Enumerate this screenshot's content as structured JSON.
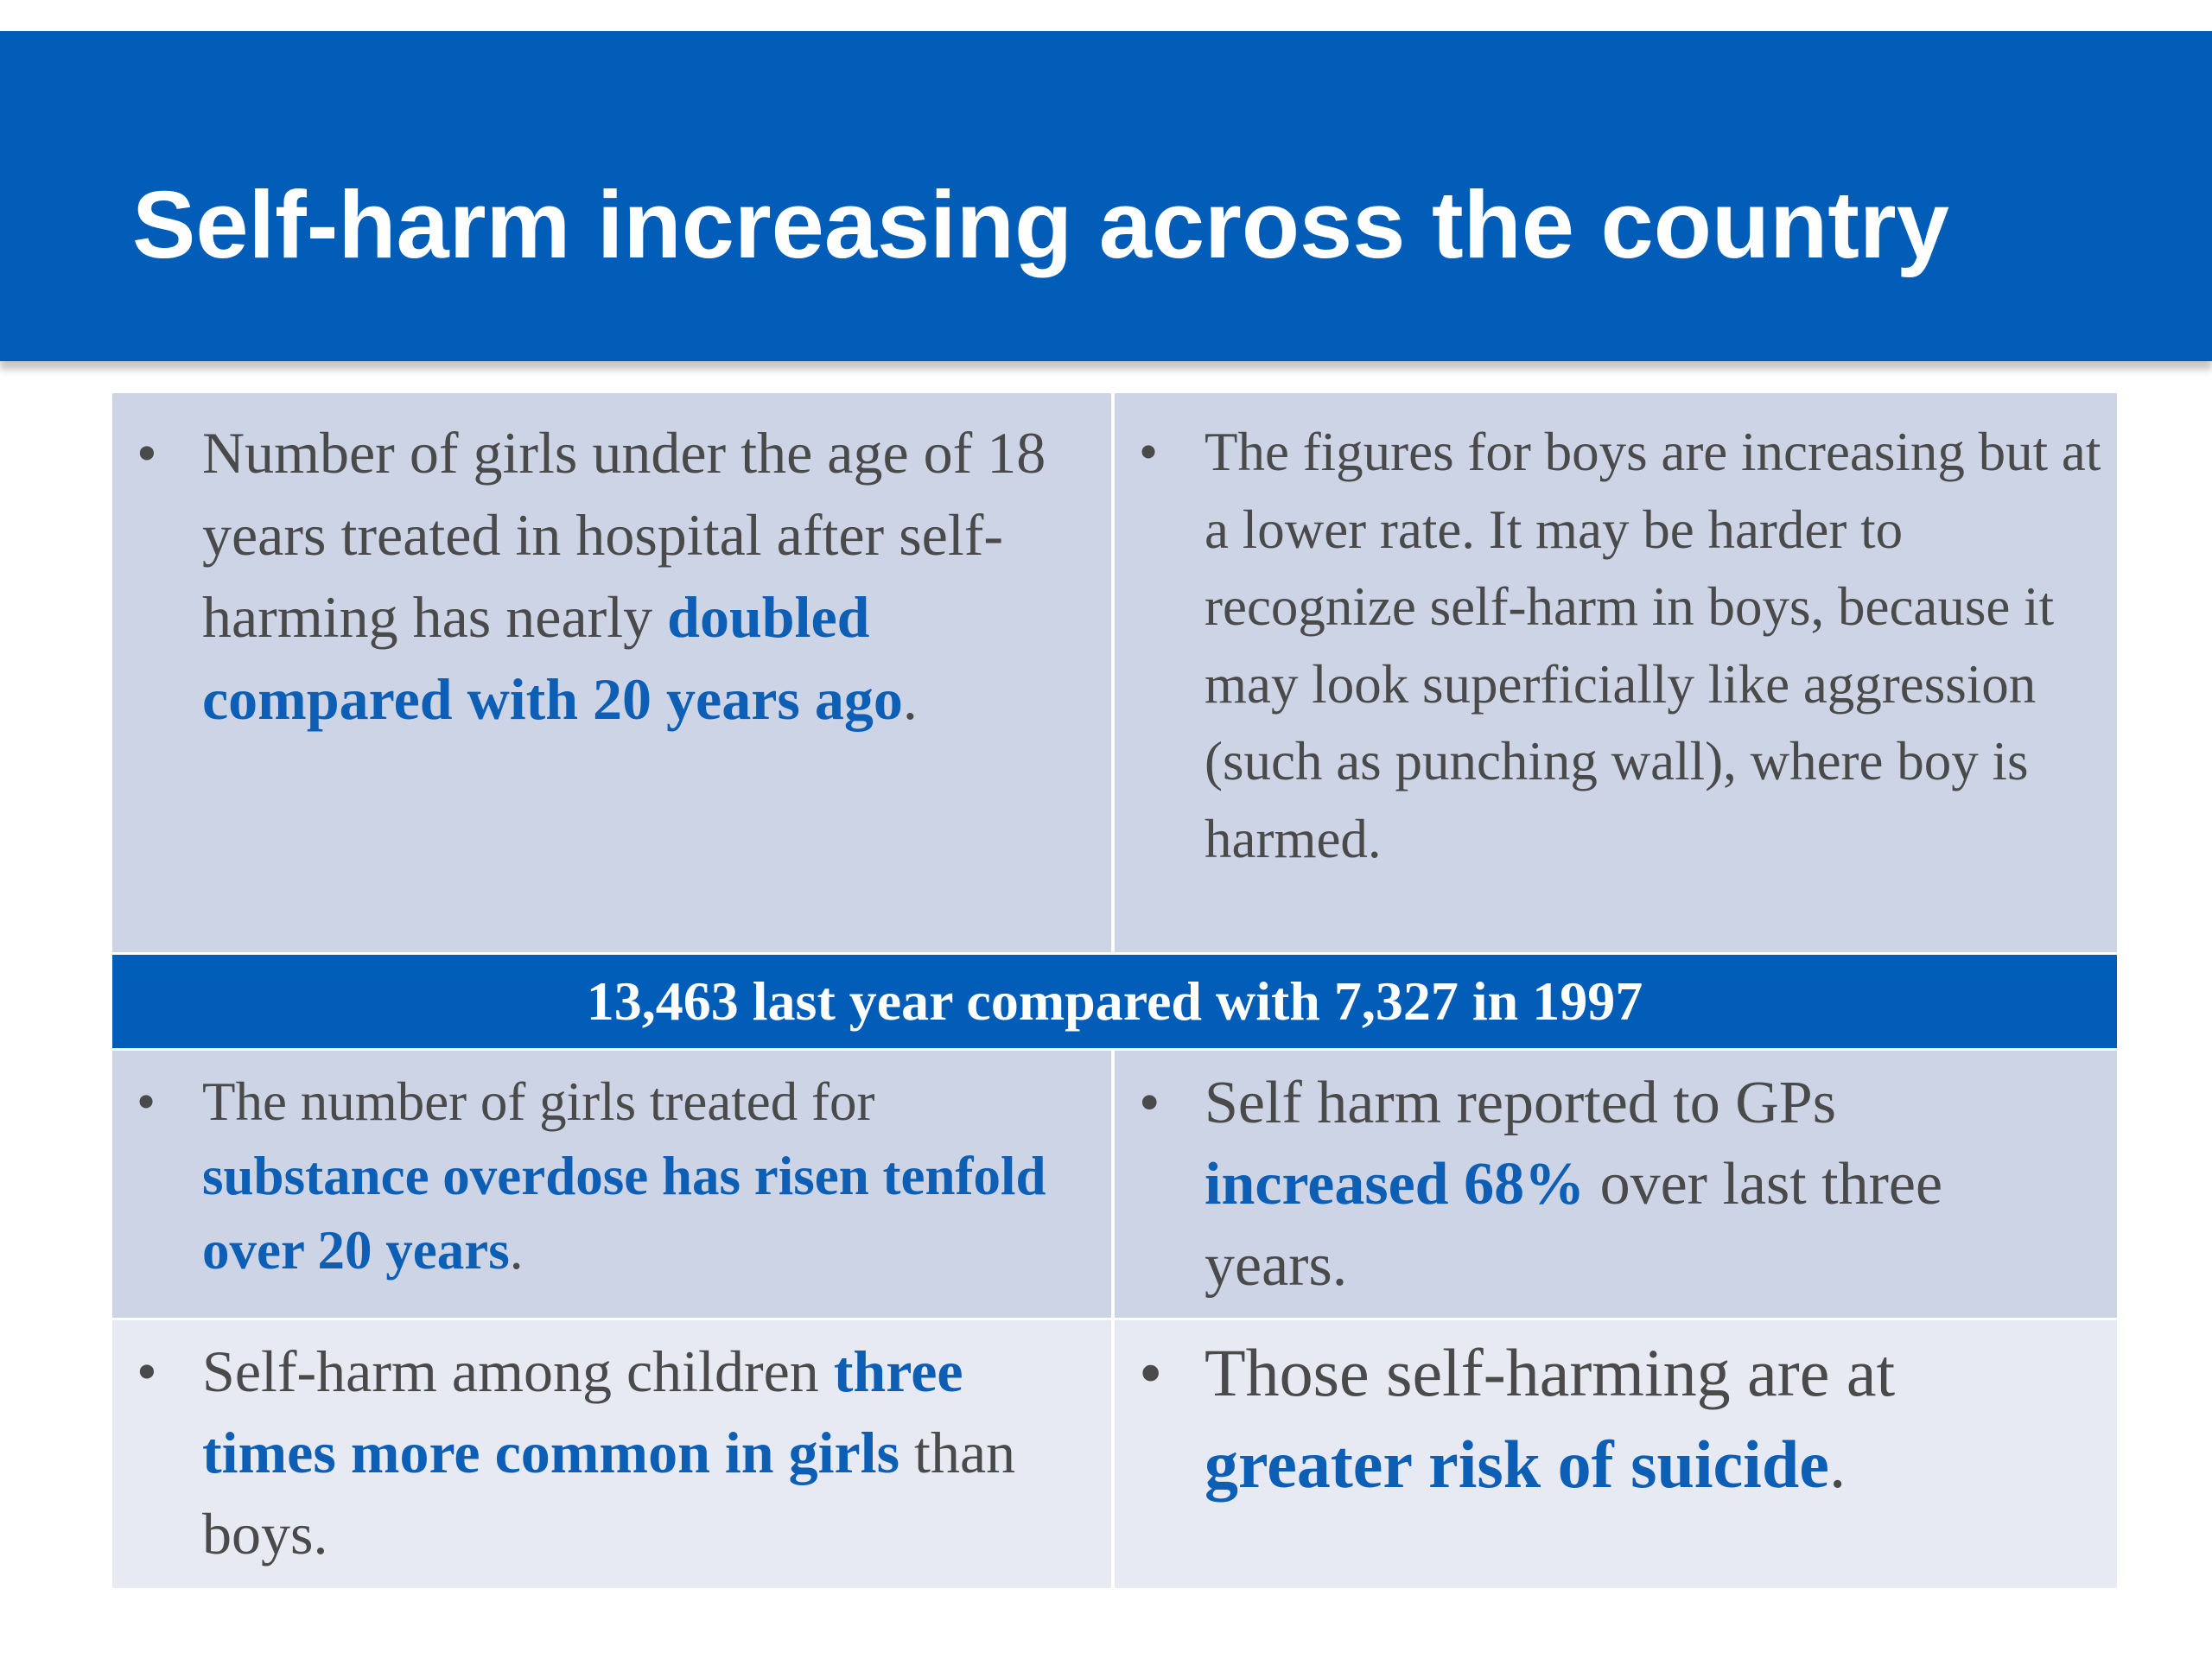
{
  "slide": {
    "title": "Self-harm increasing across the country"
  },
  "bullet_glyph": "•",
  "cells": {
    "girls_hospital": {
      "before": "Number of girls under the age of 18 years treated in hospital after self-harming has nearly ",
      "emphasis": "doubled compared with 20 years ago",
      "after": "."
    },
    "boys_figures": {
      "text": "The figures for boys are increasing but at a lower rate. It may be harder to recognize self-harm in boys, because it may look superficially like aggression (such as punching wall), where boy is harmed."
    },
    "banner": {
      "text": "13,463 last year compared with 7,327 in 1997"
    },
    "overdose": {
      "before": "The number of girls treated for ",
      "emphasis": "substance overdose has risen tenfold over 20 years",
      "after": "."
    },
    "gp_reports": {
      "before": "Self harm reported to GPs ",
      "emphasis": "increased 68%",
      "after": " over last three years."
    },
    "girls_vs_boys": {
      "before": "Self-harm among children ",
      "emphasis": "three times more common in girls",
      "after": " than boys."
    },
    "suicide_risk": {
      "before": "Those self-harming are at ",
      "emphasis": "greater risk of suicide",
      "after": "."
    }
  },
  "colors": {
    "title_bar": "#015db7",
    "cell_dark": "#cdd4e6",
    "cell_light": "#e8eaf3",
    "emphasis_text": "#0d5fb5",
    "body_text": "#4a4a4a"
  }
}
